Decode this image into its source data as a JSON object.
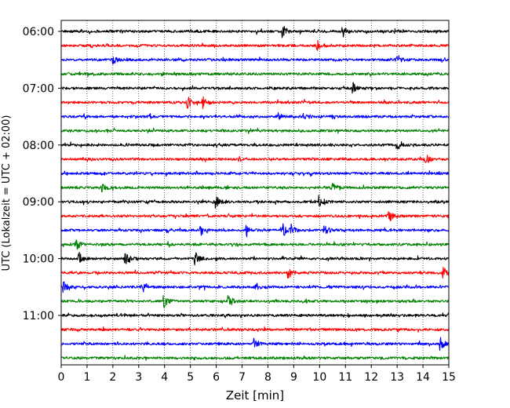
{
  "chart_data": {
    "type": "line",
    "title": "",
    "xlabel": "Zeit  [min]",
    "ylabel": "UTC (Lokalzeit = UTC + 02:00)",
    "xlim": [
      0,
      15
    ],
    "x_ticks": [
      "0",
      "1",
      "2",
      "3",
      "4",
      "5",
      "6",
      "7",
      "8",
      "9",
      "10",
      "11",
      "12",
      "13",
      "14",
      "15"
    ],
    "y_tick_labels": [
      "06:00",
      "07:00",
      "08:00",
      "09:00",
      "10:00",
      "11:00"
    ],
    "grid": "vertical dotted at each minute",
    "row_interval_minutes": 15,
    "color_cycle": [
      "#000000",
      "#ff0000",
      "#0000ff",
      "#008000"
    ],
    "traces": [
      {
        "start": "06:00",
        "color": "#000000",
        "events": [
          8.6,
          10.9
        ]
      },
      {
        "start": "06:15",
        "color": "#ff0000",
        "events": [
          9.9
        ]
      },
      {
        "start": "06:30",
        "color": "#0000ff",
        "events": [
          2.0,
          13.0
        ]
      },
      {
        "start": "06:45",
        "color": "#008000",
        "events": []
      },
      {
        "start": "07:00",
        "color": "#000000",
        "events": [
          11.3
        ]
      },
      {
        "start": "07:15",
        "color": "#ff0000",
        "events": [
          4.9,
          5.5
        ]
      },
      {
        "start": "07:30",
        "color": "#0000ff",
        "events": [
          8.4,
          9.4
        ]
      },
      {
        "start": "07:45",
        "color": "#008000",
        "events": []
      },
      {
        "start": "08:00",
        "color": "#000000",
        "events": [
          13.0
        ]
      },
      {
        "start": "08:15",
        "color": "#ff0000",
        "events": [
          14.1
        ]
      },
      {
        "start": "08:30",
        "color": "#0000ff",
        "events": []
      },
      {
        "start": "08:45",
        "color": "#008000",
        "events": [
          10.5,
          1.6
        ]
      },
      {
        "start": "09:00",
        "color": "#000000",
        "events": [
          10.0,
          6.0
        ]
      },
      {
        "start": "09:15",
        "color": "#ff0000",
        "events": [
          12.7
        ]
      },
      {
        "start": "09:30",
        "color": "#0000ff",
        "events": [
          5.4,
          7.2,
          8.6,
          8.9,
          10.2
        ]
      },
      {
        "start": "09:45",
        "color": "#008000",
        "events": [
          0.6
        ]
      },
      {
        "start": "10:00",
        "color": "#000000",
        "events": [
          0.7,
          5.2,
          2.5
        ]
      },
      {
        "start": "10:15",
        "color": "#ff0000",
        "events": [
          8.8,
          14.8
        ]
      },
      {
        "start": "10:30",
        "color": "#0000ff",
        "events": [
          0.1,
          3.2,
          7.5
        ]
      },
      {
        "start": "10:45",
        "color": "#008000",
        "events": [
          6.5,
          4.0
        ]
      },
      {
        "start": "11:00",
        "color": "#000000",
        "events": []
      },
      {
        "start": "11:15",
        "color": "#ff0000",
        "events": []
      },
      {
        "start": "11:30",
        "color": "#0000ff",
        "events": [
          7.5,
          14.7
        ]
      },
      {
        "start": "11:45",
        "color": "#008000",
        "events": []
      }
    ]
  }
}
